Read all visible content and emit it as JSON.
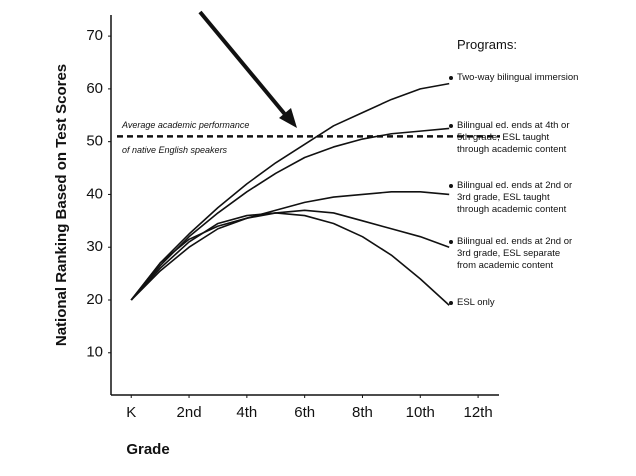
{
  "chart_data": {
    "type": "line",
    "x_label": "Grade",
    "y_label": "National Ranking Based on Test Scores",
    "legend_title": "Programs:",
    "x": [
      0,
      1,
      2,
      3,
      4,
      5,
      6,
      7,
      8,
      9,
      10,
      11
    ],
    "xlim": [
      -0.7,
      13
    ],
    "xticks": [
      {
        "value": 0,
        "label": "K"
      },
      {
        "value": 2,
        "label": "2nd"
      },
      {
        "value": 4,
        "label": "4th"
      },
      {
        "value": 6,
        "label": "6th"
      },
      {
        "value": 8,
        "label": "8th"
      },
      {
        "value": 10,
        "label": "10th"
      },
      {
        "value": 12,
        "label": "12th"
      }
    ],
    "ylim": [
      2,
      74
    ],
    "yticks": [
      10,
      20,
      30,
      40,
      50,
      60,
      70
    ],
    "grid": false,
    "reference_line": {
      "value": 51,
      "label": [
        "Average academic performance",
        "of native English speakers"
      ]
    },
    "series": [
      {
        "name": "Two-way bilingual immersion",
        "color": "#111111",
        "values": [
          20,
          27,
          32.5,
          37.5,
          42,
          46,
          49.5,
          53,
          55.5,
          58,
          60,
          61
        ]
      },
      {
        "name": "Bilingual ed. ends at 4th or 5th grade, ESL taught through academic content",
        "color": "#111111",
        "values": [
          20,
          26.5,
          32,
          36.5,
          40.5,
          44,
          47,
          49,
          50.5,
          51.5,
          52,
          52.5
        ]
      },
      {
        "name": "Bilingual ed. ends at 2nd or 3rd grade, ESL taught through academic content",
        "color": "#111111",
        "values": [
          20,
          27,
          31.5,
          34,
          35.5,
          37,
          38.5,
          39.5,
          40,
          40.5,
          40.5,
          40
        ]
      },
      {
        "name": "Bilingual ed. ends at 2nd or 3rd grade, ESL separate from academic content",
        "color": "#111111",
        "values": [
          20,
          26,
          31,
          34.5,
          36,
          36.5,
          37,
          36.5,
          35,
          33.5,
          32,
          30
        ]
      },
      {
        "name": "ESL only",
        "color": "#111111",
        "values": [
          20,
          25.5,
          30,
          33.5,
          35.5,
          36.5,
          36,
          34.5,
          32,
          28.5,
          24,
          19
        ]
      }
    ]
  }
}
